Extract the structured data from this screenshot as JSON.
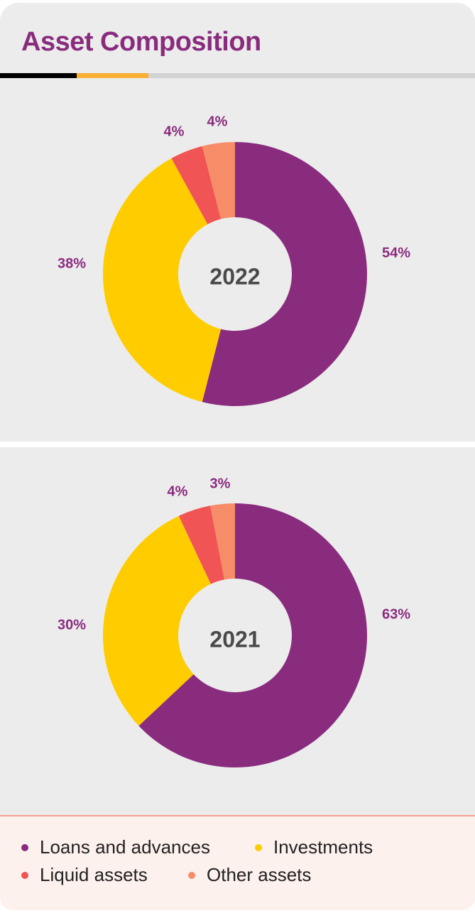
{
  "title": "Asset Composition",
  "colors": {
    "title": "#8a2c7e",
    "bar_black": "#000000",
    "bar_orange": "#fbb034",
    "bar_gray": "#d2d2d2"
  },
  "chart_data": [
    {
      "type": "pie",
      "variant": "donut",
      "center_label": "2022",
      "categories": [
        "Loans and advances",
        "Investments",
        "Liquid assets",
        "Other assets"
      ],
      "values": [
        54,
        38,
        4,
        4
      ],
      "labels": [
        "54%",
        "38%",
        "4%",
        "4%"
      ],
      "colors": [
        "#8a2c7e",
        "#ffcc00",
        "#f05454",
        "#f68d68"
      ]
    },
    {
      "type": "pie",
      "variant": "donut",
      "center_label": "2021",
      "categories": [
        "Loans and advances",
        "Investments",
        "Liquid assets",
        "Other assets"
      ],
      "values": [
        63,
        30,
        4,
        3
      ],
      "labels": [
        "63%",
        "30%",
        "4%",
        "3%"
      ],
      "colors": [
        "#8a2c7e",
        "#ffcc00",
        "#f05454",
        "#f68d68"
      ]
    }
  ],
  "legend": [
    {
      "label": "Loans and advances",
      "color": "#8a2c7e"
    },
    {
      "label": "Investments",
      "color": "#ffcc00"
    },
    {
      "label": "Liquid assets",
      "color": "#f05454"
    },
    {
      "label": "Other assets",
      "color": "#f68d68"
    }
  ]
}
